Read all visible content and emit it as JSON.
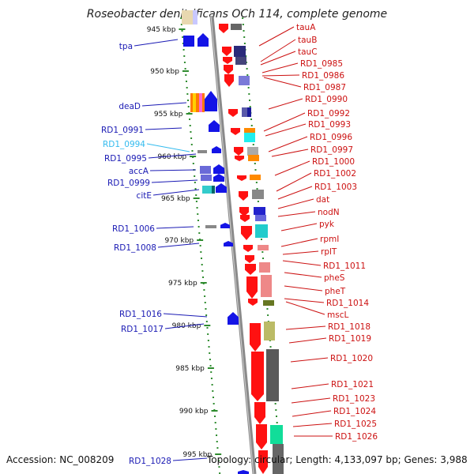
{
  "title": "Roseobacter denitrificans OCh 114, complete genome",
  "accession": "Accession: NC_008209",
  "topology": "Topology: circular; Length: 4,133,097 bp; Genes: 3,988",
  "colors": {
    "backbone": "#8a8a8a",
    "tick_dots": "#2e8b2e",
    "left_label": "#1a1ab4",
    "left_label_highlight": "#33bbee",
    "right_label": "#cc1111",
    "gene_red": "#ff1111",
    "gene_blue": "#1414e6"
  },
  "scale_labels": [
    "945 kbp",
    "950 kbp",
    "955 kbp",
    "960 kbp",
    "965 kbp",
    "970 kbp",
    "975 kbp",
    "980 kbp",
    "985 kbp",
    "990 kbp",
    "995 kbp"
  ],
  "left_genes": [
    "tpa",
    "deaD",
    "RD1_0991",
    "RD1_0994",
    "RD1_0995",
    "accA",
    "RD1_0999",
    "citE",
    "RD1_1006",
    "RD1_1008",
    "RD1_1016",
    "RD1_1017",
    "RD1_1028"
  ],
  "right_genes": [
    "tauA",
    "tauB",
    "tauC",
    "RD1_0985",
    "RD1_0986",
    "RD1_0987",
    "RD1_0990",
    "RD1_0992",
    "RD1_0993",
    "RD1_0996",
    "RD1_0997",
    "RD1_1000",
    "RD1_1002",
    "RD1_1003",
    "dat",
    "nodN",
    "pyk",
    "rpmI",
    "rplT",
    "RD1_1011",
    "pheS",
    "pheT",
    "RD1_1014",
    "mscL",
    "RD1_1018",
    "RD1_1019",
    "RD1_1020",
    "RD1_1021",
    "RD1_1023",
    "RD1_1024",
    "RD1_1025",
    "RD1_1026"
  ]
}
